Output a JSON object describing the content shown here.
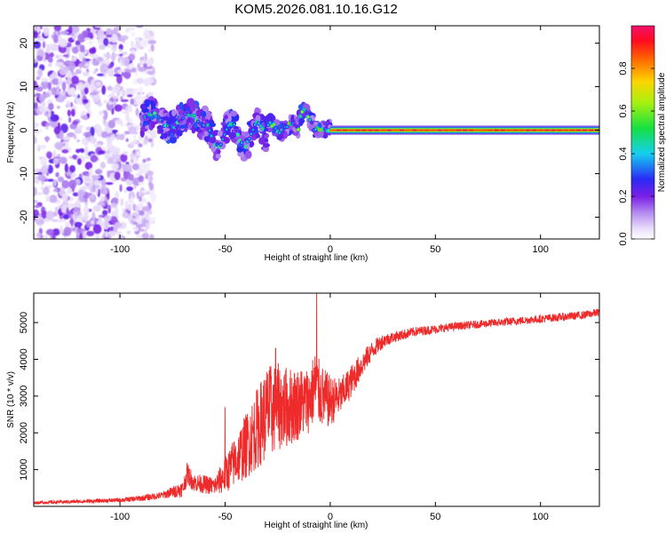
{
  "title": "KOM5.2026.081.10.16.G12",
  "colors": {
    "snr_line": "#ef2a2a",
    "spectrum_background": "#ffffff",
    "frame": "#000000"
  },
  "chart_data": [
    {
      "type": "heatmap",
      "name": "spectrogram",
      "xlabel": "Height of straight line (km)",
      "ylabel": "Frequency (Hz)",
      "xlim": [
        -141,
        128
      ],
      "ylim": [
        -25,
        24
      ],
      "xticks": [
        -100,
        -50,
        0,
        50,
        100
      ],
      "yticks": [
        -20,
        -10,
        0,
        10,
        20
      ],
      "xtick_labels": [
        "-100",
        "-50",
        "0",
        "50",
        "100"
      ],
      "ytick_labels": [
        "-20",
        "-10",
        "0",
        "10",
        "20"
      ],
      "colorbar": {
        "label": "Normalized spectral amplitude",
        "range": [
          0,
          1
        ],
        "ticks": [
          0.0,
          0.2,
          0.4,
          0.6,
          0.8
        ],
        "tick_labels": [
          "0.0",
          "0.2",
          "0.4",
          "0.6",
          "0.8"
        ],
        "colormap": "rainbow (white-lavender-violet-blue-cyan-green-yellow-orange-red-magenta)"
      },
      "features": [
        {
          "name": "noise region",
          "x_range": [
            -141,
            -90
          ],
          "freq_range": [
            -25,
            24
          ],
          "amplitude": "0.05-0.2"
        },
        {
          "name": "scattered carrier signal",
          "x_range": [
            -90,
            -25
          ],
          "freq_range": [
            -6,
            6
          ],
          "amplitude": "0.2-0.6"
        },
        {
          "name": "wandering carrier",
          "x_range": [
            -25,
            0
          ],
          "freq_range": [
            -2,
            5
          ],
          "amplitude": "0.4-0.8"
        },
        {
          "name": "stable carrier line",
          "x_range": [
            0,
            128
          ],
          "freq": 0,
          "amplitude": "0.8-1.0"
        }
      ]
    },
    {
      "type": "line",
      "name": "snr",
      "xlabel": "Height of straight line (km)",
      "ylabel": "SNR (10 * v/v)",
      "xlim": [
        -141,
        128
      ],
      "ylim": [
        0,
        5800
      ],
      "xticks": [
        -100,
        -50,
        0,
        50,
        100
      ],
      "yticks": [
        1000,
        2000,
        3000,
        4000,
        5000
      ],
      "xtick_labels": [
        "-100",
        "-50",
        "0",
        "50",
        "100"
      ],
      "ytick_labels": [
        "1000",
        "2000",
        "3000",
        "4000",
        "5000"
      ],
      "series": [
        {
          "name": "SNR",
          "x": [
            -141,
            -120,
            -100,
            -90,
            -80,
            -70,
            -68,
            -65,
            -55,
            -50,
            -45,
            -40,
            -35,
            -30,
            -25,
            -20,
            -15,
            -10,
            -7,
            -5,
            -2,
            0,
            5,
            10,
            15,
            20,
            25,
            30,
            40,
            50,
            60,
            70,
            80,
            90,
            100,
            110,
            120,
            128
          ],
          "y": [
            100,
            130,
            170,
            220,
            300,
            480,
            900,
            650,
            550,
            850,
            1250,
            1650,
            2100,
            2550,
            2700,
            2700,
            2800,
            2900,
            3300,
            3050,
            2900,
            2850,
            3000,
            3400,
            3850,
            4250,
            4500,
            4600,
            4750,
            4820,
            4900,
            4950,
            5000,
            5050,
            5100,
            5150,
            5200,
            5280
          ],
          "noise": [
            40,
            50,
            60,
            80,
            100,
            220,
            300,
            250,
            250,
            500,
            700,
            900,
            1100,
            1300,
            1200,
            1100,
            1000,
            900,
            1000,
            900,
            800,
            700,
            500,
            450,
            350,
            250,
            200,
            150,
            130,
            120,
            110,
            110,
            110,
            110,
            110,
            110,
            110,
            110
          ]
        }
      ],
      "spikes": [
        {
          "x": -26,
          "y": 4300
        },
        {
          "x": -50,
          "y": 2700
        },
        {
          "x": -29,
          "y": 3700
        },
        {
          "x": -6.5,
          "y": 5800
        }
      ]
    }
  ]
}
